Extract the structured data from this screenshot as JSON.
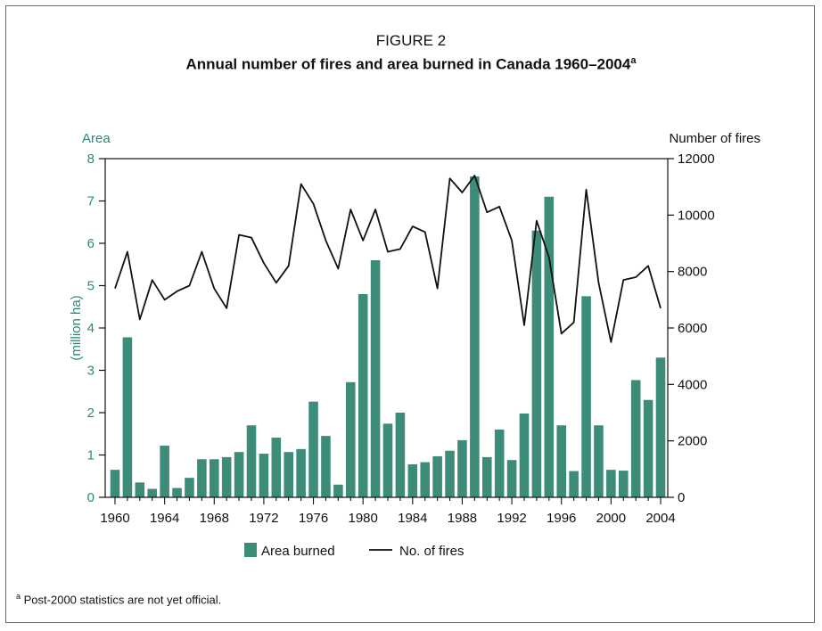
{
  "figure": {
    "label": "FIGURE 2",
    "title": "Annual number of fires and area burned in Canada 1960–2004",
    "title_sup": "a"
  },
  "footnote": {
    "marker": "a",
    "text": "Post-2000 statistics are not yet official."
  },
  "colors": {
    "bar": "#3d8c7a",
    "line": "#111111",
    "left_axis": "#2a8a78",
    "right_axis": "#111111"
  },
  "chart_data": {
    "type": "bar+line",
    "left_axis": {
      "label_top": "Area",
      "label_side": "(million ha)",
      "range": [
        0,
        8
      ],
      "ticks": [
        0,
        1,
        2,
        3,
        4,
        5,
        6,
        7,
        8
      ]
    },
    "right_axis": {
      "label_top": "Number of fires",
      "range": [
        0,
        12000
      ],
      "ticks": [
        0,
        2000,
        4000,
        6000,
        8000,
        10000,
        12000
      ]
    },
    "x_ticks": [
      1960,
      1964,
      1968,
      1972,
      1976,
      1980,
      1984,
      1988,
      1992,
      1996,
      2000,
      2004
    ],
    "years": [
      1960,
      1961,
      1962,
      1963,
      1964,
      1965,
      1966,
      1967,
      1968,
      1969,
      1970,
      1971,
      1972,
      1973,
      1974,
      1975,
      1976,
      1977,
      1978,
      1979,
      1980,
      1981,
      1982,
      1983,
      1984,
      1985,
      1986,
      1987,
      1988,
      1989,
      1990,
      1991,
      1992,
      1993,
      1994,
      1995,
      1996,
      1997,
      1998,
      1999,
      2000,
      2001,
      2002,
      2003,
      2004
    ],
    "series": [
      {
        "name": "Area burned",
        "kind": "bar",
        "axis": "left",
        "values": [
          0.65,
          3.78,
          0.35,
          0.2,
          1.22,
          0.22,
          0.46,
          0.9,
          0.9,
          0.95,
          1.07,
          1.7,
          1.03,
          1.41,
          1.07,
          1.14,
          2.26,
          1.45,
          0.3,
          2.72,
          4.8,
          5.6,
          1.74,
          2.0,
          0.78,
          0.83,
          0.97,
          1.1,
          1.35,
          7.58,
          0.95,
          1.6,
          0.88,
          1.98,
          6.3,
          7.1,
          1.7,
          0.62,
          4.75,
          1.7,
          0.65,
          0.63,
          2.77,
          2.3,
          3.3
        ]
      },
      {
        "name": "No. of fires",
        "kind": "line",
        "axis": "right",
        "values": [
          7400,
          8700,
          6300,
          7700,
          7000,
          7300,
          7500,
          8700,
          7400,
          6700,
          9300,
          9200,
          8300,
          7600,
          8200,
          11100,
          10400,
          9100,
          8100,
          10200,
          9100,
          10200,
          8700,
          8800,
          9600,
          9400,
          7400,
          11300,
          10800,
          11400,
          10100,
          10300,
          9100,
          6100,
          9800,
          8500,
          5800,
          6200,
          10900,
          7600,
          5500,
          7700,
          7800,
          8200,
          6700
        ]
      }
    ],
    "legend": {
      "placement": "bottom-center"
    }
  }
}
